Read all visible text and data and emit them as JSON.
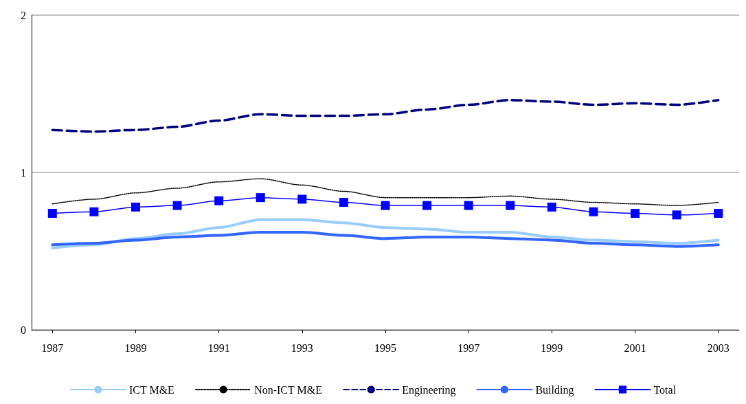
{
  "chart_data": {
    "type": "line",
    "x": [
      1987,
      1988,
      1989,
      1990,
      1991,
      1992,
      1993,
      1994,
      1995,
      1996,
      1997,
      1998,
      1999,
      2000,
      2001,
      2002,
      2003
    ],
    "xlim": [
      1986.5,
      2003.5
    ],
    "xticks": [
      1987,
      1989,
      1991,
      1993,
      1995,
      1997,
      1999,
      2001,
      2003
    ],
    "ylim": [
      0,
      2
    ],
    "yticks": [
      0,
      1,
      2
    ],
    "grid": "y",
    "legend": "bottom",
    "marker": "none",
    "series": [
      {
        "name": "ICT M&E",
        "color": "#99ccff",
        "line_style": "solid",
        "values": [
          0.52,
          0.54,
          0.58,
          0.61,
          0.65,
          0.7,
          0.7,
          0.68,
          0.65,
          0.64,
          0.62,
          0.62,
          0.59,
          0.57,
          0.56,
          0.55,
          0.57
        ]
      },
      {
        "name": "Non-ICT M&E",
        "color": "#000000",
        "line_style": "dotted",
        "values": [
          0.8,
          0.83,
          0.87,
          0.9,
          0.94,
          0.96,
          0.92,
          0.88,
          0.84,
          0.84,
          0.84,
          0.85,
          0.83,
          0.81,
          0.8,
          0.79,
          0.81
        ]
      },
      {
        "name": "Engineering",
        "color": "#000080",
        "line_style": "dashed",
        "values": [
          1.27,
          1.26,
          1.27,
          1.29,
          1.33,
          1.37,
          1.36,
          1.36,
          1.37,
          1.4,
          1.43,
          1.46,
          1.45,
          1.43,
          1.44,
          1.43,
          1.46
        ]
      },
      {
        "name": "Building",
        "color": "#3366ff",
        "line_style": "solid",
        "values": [
          0.54,
          0.55,
          0.57,
          0.59,
          0.6,
          0.62,
          0.62,
          0.6,
          0.58,
          0.59,
          0.59,
          0.58,
          0.57,
          0.55,
          0.54,
          0.53,
          0.54
        ]
      },
      {
        "name": "Total",
        "color": "#0000ff",
        "line_style": "solid",
        "marker": "square",
        "values": [
          0.74,
          0.75,
          0.78,
          0.79,
          0.82,
          0.84,
          0.83,
          0.81,
          0.79,
          0.79,
          0.79,
          0.79,
          0.78,
          0.75,
          0.74,
          0.73,
          0.74
        ]
      }
    ]
  }
}
